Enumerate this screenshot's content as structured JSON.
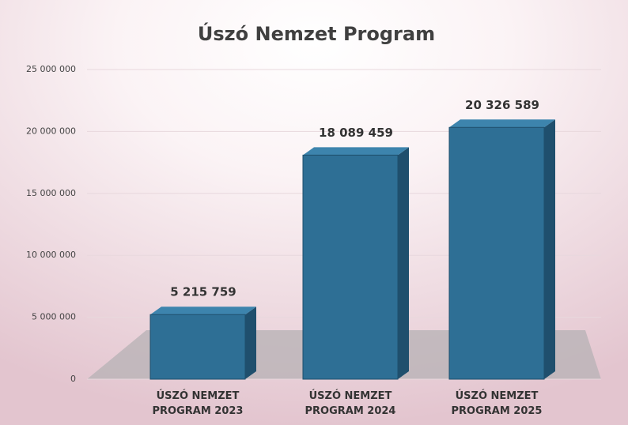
{
  "chart_data": {
    "type": "bar",
    "title": "Úszó Nemzet Program",
    "categories": [
      "ÚSZÓ NEMZET PROGRAM 2023",
      "ÚSZÓ NEMZET PROGRAM 2024",
      "ÚSZÓ NEMZET PROGRAM 2025"
    ],
    "values": [
      5215759,
      18089459,
      20326589
    ],
    "value_labels": [
      "5 215 759",
      "18 089 459",
      "20 326 589"
    ],
    "color": "#2e6f95",
    "ylim": [
      0,
      25000000
    ],
    "yticks": [
      {
        "value": 0,
        "label": "0"
      },
      {
        "value": 5000000,
        "label": "5 000 000"
      },
      {
        "value": 10000000,
        "label": "10 000 000"
      },
      {
        "value": 15000000,
        "label": "15 000 000"
      },
      {
        "value": 20000000,
        "label": "20 000 000"
      },
      {
        "value": 25000000,
        "label": "25 000 000"
      }
    ],
    "grid": true
  }
}
